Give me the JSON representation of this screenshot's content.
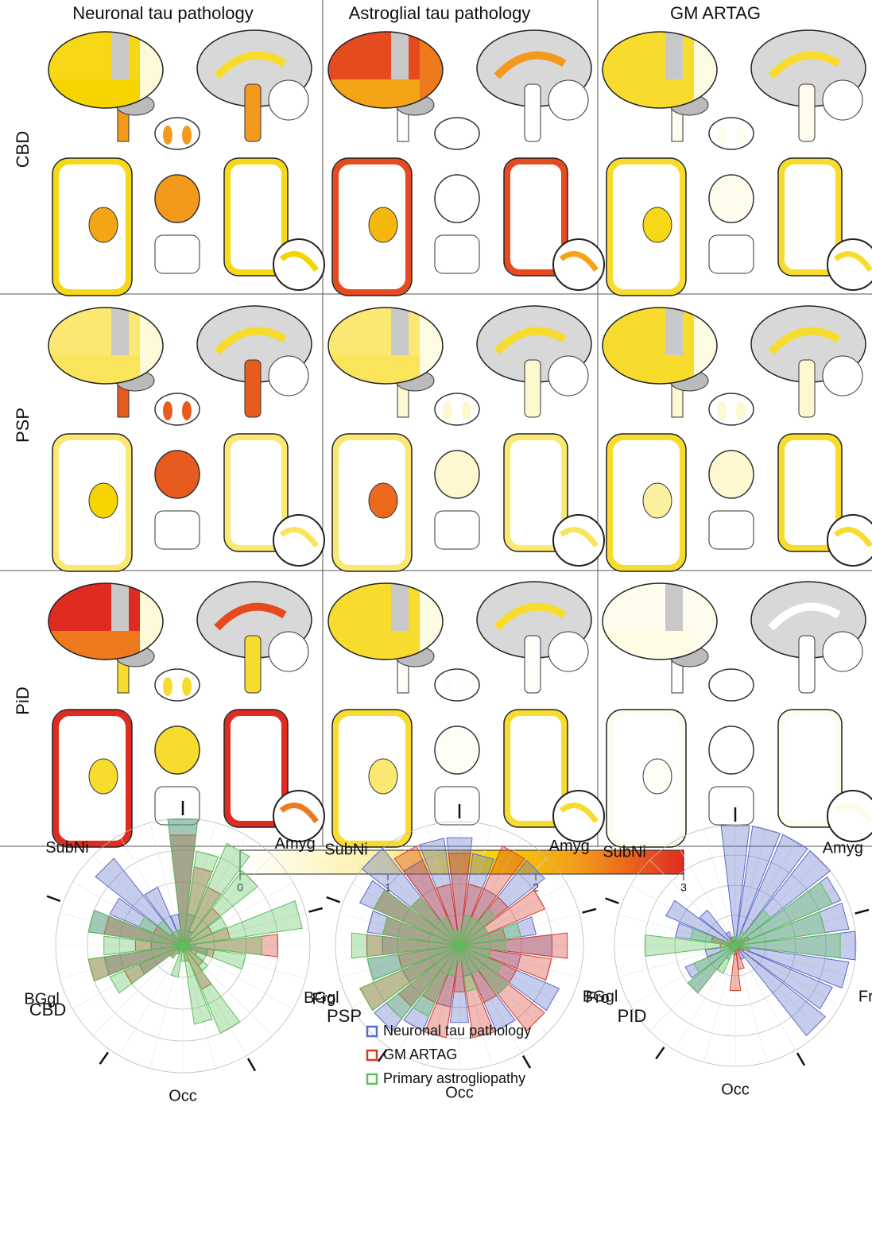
{
  "columns": [
    "Neuronal tau pathology",
    "Astroglial tau pathology",
    "GM ARTAG"
  ],
  "rows": [
    "CBD",
    "PSP",
    "PiD"
  ],
  "panels": [
    [
      {
        "cortex": 1.6,
        "temporal": 1.7,
        "occipital": 0.4,
        "cingulate": 1.5,
        "brainstem": 2.3,
        "basal_ganglia": 2.2
      },
      {
        "cortex": 2.8,
        "temporal": 2.2,
        "occipital": 2.5,
        "cingulate": 2.3,
        "brainstem": 0,
        "basal_ganglia": 2.0
      },
      {
        "cortex": 1.5,
        "temporal": 1.5,
        "occipital": 0.3,
        "cingulate": 1.5,
        "brainstem": 0.2,
        "basal_ganglia": 1.6
      }
    ],
    [
      {
        "cortex": 1.2,
        "temporal": 1.3,
        "occipital": 0.4,
        "cingulate": 1.5,
        "brainstem": 2.7,
        "basal_ganglia": 1.7
      },
      {
        "cortex": 1.2,
        "temporal": 1.3,
        "occipital": 0.3,
        "cingulate": 1.5,
        "brainstem": 0.5,
        "basal_ganglia": 2.6
      },
      {
        "cortex": 1.5,
        "temporal": 1.5,
        "occipital": 0.3,
        "cingulate": 1.5,
        "brainstem": 0.5,
        "basal_ganglia": 1.0
      }
    ],
    [
      {
        "cortex": 3.0,
        "temporal": 2.5,
        "occipital": 0.4,
        "cingulate": 2.8,
        "brainstem": 1.5,
        "basal_ganglia": 1.5
      },
      {
        "cortex": 1.5,
        "temporal": 1.5,
        "occipital": 0.3,
        "cingulate": 1.5,
        "brainstem": 0.1,
        "basal_ganglia": 1.2
      },
      {
        "cortex": 0.2,
        "temporal": 0.3,
        "occipital": 0.2,
        "cingulate": 0,
        "brainstem": 0,
        "basal_ganglia": 0.1
      }
    ]
  ],
  "colorbar": {
    "lim": [
      0,
      3
    ],
    "ticks": [
      0,
      1,
      2,
      3
    ]
  },
  "legend": [
    {
      "name": "Neuronal tau pathology",
      "color": "#5b6cc8"
    },
    {
      "name": "GM ARTAG",
      "color": "#d83a2a"
    },
    {
      "name": "Primary astrogliopathy",
      "color": "#5cbf5c"
    }
  ],
  "radar_rlim": [
    0,
    4
  ],
  "radar_rticks": [
    1,
    2,
    3,
    4
  ],
  "radars": [
    {
      "label": "CBD",
      "sectors": [
        "SubNi",
        "Amyg",
        "Fro",
        "Occ",
        "BGgl"
      ],
      "series": [
        [
          4,
          1,
          0.5,
          0.3,
          0.3,
          0.2,
          0.4,
          0.8,
          0.3,
          0.2,
          0.1,
          0.1,
          0,
          0,
          0.1,
          0.2,
          1.5,
          2.5,
          1,
          3,
          2.5,
          3.5,
          2,
          1
        ],
        [
          3.5,
          2.5,
          2,
          1.5,
          1,
          1.5,
          3,
          1,
          0.5,
          0.8,
          1.5,
          0.5,
          0.2,
          0.1,
          0.3,
          0.5,
          2,
          3,
          1.5,
          2.5,
          1,
          0.5,
          0.3,
          0.5
        ],
        [
          4,
          3,
          3.5,
          3,
          1.5,
          3.8,
          2.5,
          2,
          0.8,
          1,
          3,
          2.5,
          0.5,
          1,
          0.3,
          0.5,
          2.5,
          3,
          2.5,
          3,
          1.5,
          1,
          0.5,
          0.5
        ]
      ]
    },
    {
      "label": "PSP",
      "sectors": [
        "SubNi",
        "Amyg",
        "Fro",
        "Occ",
        "BGgl"
      ],
      "series": [
        [
          3.5,
          3,
          2,
          3.5,
          1,
          2.5,
          3,
          2,
          3.5,
          2,
          3,
          1,
          2.5,
          2,
          3,
          3.5,
          2,
          3,
          2.5,
          3,
          3.5,
          4,
          3,
          3.5
        ],
        [
          3,
          2,
          3.5,
          2,
          3,
          1.5,
          3.5,
          3,
          2,
          3.5,
          2,
          3,
          1.5,
          3,
          2,
          2.5,
          3.5,
          2,
          3,
          2.5,
          3,
          2,
          3.5,
          2
        ],
        [
          0.5,
          1,
          1,
          1.5,
          1,
          2,
          1.5,
          1,
          1.5,
          2,
          1,
          1.5,
          0.5,
          1,
          2.5,
          3,
          3.5,
          3,
          3.5,
          2.5,
          3,
          2,
          1,
          0.5
        ]
      ]
    },
    {
      "label": "PID",
      "sectors": [
        "SubNi",
        "Amyg",
        "Fro",
        "Occ",
        "BGgl"
      ],
      "series": [
        [
          4,
          4,
          4,
          4,
          3.8,
          3.8,
          4,
          3.8,
          3.5,
          3.8,
          0.5,
          0.2,
          0.3,
          0.2,
          0.5,
          2,
          1.8,
          1,
          0.3,
          2,
          2.5,
          1.5,
          0.5,
          0.3
        ],
        [
          0.2,
          0.2,
          0.1,
          0.3,
          0.5,
          0.3,
          0.2,
          0.5,
          0.3,
          0.2,
          0.1,
          0.8,
          1.5,
          0.2,
          0.1,
          0.2,
          0.1,
          0.2,
          0.5,
          0.8,
          0.2,
          0.1,
          0.3,
          0.1
        ],
        [
          0.3,
          0.2,
          0.5,
          1.5,
          3.5,
          3,
          3.5,
          0.5,
          0.2,
          0.1,
          0.1,
          0.2,
          0.1,
          0.3,
          1,
          2,
          1.5,
          0.5,
          3,
          1.5,
          0.3,
          0.2,
          0.1,
          0.3
        ]
      ]
    }
  ]
}
